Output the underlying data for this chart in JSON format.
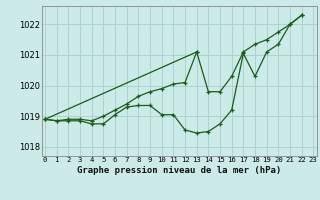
{
  "title": "Graphe pression niveau de la mer (hPa)",
  "x_labels": [
    "0",
    "1",
    "2",
    "3",
    "4",
    "5",
    "6",
    "7",
    "8",
    "9",
    "10",
    "11",
    "12",
    "13",
    "14",
    "15",
    "16",
    "17",
    "18",
    "19",
    "20",
    "21",
    "22",
    "23"
  ],
  "ylim": [
    1017.7,
    1022.6
  ],
  "yticks": [
    1018,
    1019,
    1020,
    1021,
    1022
  ],
  "xlim": [
    -0.3,
    23.3
  ],
  "background_color": "#cceae7",
  "grid_color": "#aad4d0",
  "line_color": "#1a5c1a",
  "line1_x": [
    0,
    1,
    2,
    3,
    4,
    5,
    6,
    7,
    8,
    9,
    10,
    11,
    12,
    13,
    14,
    15,
    16,
    17,
    18,
    19,
    20,
    21,
    22
  ],
  "line1_y": [
    1018.9,
    1018.85,
    1018.85,
    1018.85,
    1018.75,
    1018.75,
    1019.05,
    1019.3,
    1019.35,
    1019.35,
    1019.05,
    1019.05,
    1018.55,
    1018.45,
    1018.5,
    1018.75,
    1019.2,
    1021.05,
    1020.3,
    1021.1,
    1021.35,
    1022.0,
    1022.3
  ],
  "line2_x": [
    0,
    1,
    2,
    3,
    4,
    5,
    6,
    7,
    8,
    9,
    10,
    11,
    12,
    13
  ],
  "line2_y": [
    1018.9,
    1018.85,
    1018.9,
    1018.9,
    1018.85,
    1019.0,
    1019.2,
    1019.4,
    1019.65,
    1019.8,
    1019.9,
    1020.05,
    1020.1,
    1021.1
  ],
  "line3_x": [
    0,
    13,
    14,
    15,
    16,
    17,
    18,
    19,
    20,
    21,
    22
  ],
  "line3_y": [
    1018.9,
    1021.1,
    1019.8,
    1019.8,
    1020.3,
    1021.1,
    1021.35,
    1021.5,
    1021.75,
    1022.0,
    1022.3
  ]
}
